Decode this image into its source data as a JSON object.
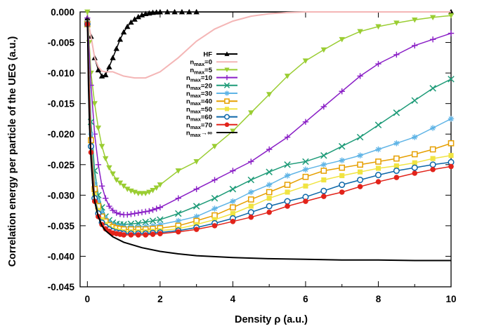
{
  "chart_data": {
    "type": "line",
    "title": "",
    "xlabel": "Density  ρ (a.u.)",
    "ylabel": "Correlation energy per particle of the UEG (a.u.)",
    "xlim": [
      -0.2,
      10
    ],
    "ylim": [
      -0.045,
      0.0
    ],
    "xticks": [
      "0",
      "2",
      "4",
      "6",
      "8",
      "10"
    ],
    "yticks": [
      "0.000",
      "-0.005",
      "-0.010",
      "-0.015",
      "-0.020",
      "-0.025",
      "-0.030",
      "-0.035",
      "-0.040",
      "-0.045"
    ],
    "grid": false,
    "legend_position": "upper-left-center",
    "series": [
      {
        "name": "HF",
        "legend_main": "HF",
        "legend_sub": "",
        "legend_tail": "",
        "color": "#000000",
        "marker": "triangle-up",
        "x": [
          0.0,
          0.1,
          0.2,
          0.3,
          0.4,
          0.5,
          0.6,
          0.7,
          0.8,
          0.9,
          1.0,
          1.1,
          1.2,
          1.3,
          1.4,
          1.5,
          1.6,
          1.7,
          1.8,
          1.9,
          2.0,
          2.2,
          2.4,
          2.6,
          2.8,
          3.0,
          10.0
        ],
        "y": [
          -0.001,
          -0.004,
          -0.0075,
          -0.0095,
          -0.0105,
          -0.0103,
          -0.009,
          -0.0075,
          -0.006,
          -0.0045,
          -0.0033,
          -0.0024,
          -0.0017,
          -0.0012,
          -0.0008,
          -0.0005,
          -0.0003,
          -0.0002,
          -0.0001,
          -5e-05,
          0.0,
          0.0,
          0.0,
          0.0,
          0.0,
          0.0,
          0.0
        ]
      },
      {
        "name": "n_max=0",
        "legend_main": "n",
        "legend_sub": "max",
        "legend_tail": "=0",
        "color": "#f4b6b6",
        "marker": "none",
        "x": [
          0.0,
          0.1,
          0.2,
          0.3,
          0.4,
          0.5,
          0.7,
          1.0,
          1.3,
          1.6,
          2.0,
          2.5,
          3.0,
          3.5,
          4.0,
          4.5,
          5.0,
          5.5,
          6.0,
          7.0,
          8.0,
          10.0
        ],
        "y": [
          -0.001,
          -0.004,
          -0.0075,
          -0.009,
          -0.0097,
          -0.0098,
          -0.0098,
          -0.0105,
          -0.0108,
          -0.0108,
          -0.0098,
          -0.0075,
          -0.0048,
          -0.0028,
          -0.0015,
          -0.0007,
          -0.0003,
          -0.0001,
          0.0,
          0.0,
          0.0,
          0.0
        ]
      },
      {
        "name": "n_max=5",
        "legend_main": "n",
        "legend_sub": "max",
        "legend_tail": "=5",
        "color": "#9acd32",
        "marker": "triangle-down",
        "x": [
          0.0,
          0.05,
          0.1,
          0.2,
          0.3,
          0.4,
          0.5,
          0.6,
          0.7,
          0.8,
          0.9,
          1.0,
          1.1,
          1.2,
          1.3,
          1.4,
          1.5,
          1.6,
          1.7,
          1.8,
          1.9,
          2.0,
          2.5,
          3.0,
          3.5,
          4.0,
          4.5,
          5.0,
          5.5,
          6.0,
          6.5,
          7.0,
          7.5,
          8.0,
          8.5,
          9.0,
          9.5,
          10.0
        ],
        "y": [
          0.0,
          -0.005,
          -0.01,
          -0.015,
          -0.019,
          -0.022,
          -0.024,
          -0.0255,
          -0.0265,
          -0.0275,
          -0.028,
          -0.0285,
          -0.029,
          -0.0293,
          -0.0295,
          -0.0297,
          -0.0297,
          -0.0297,
          -0.0295,
          -0.0292,
          -0.0288,
          -0.0283,
          -0.026,
          -0.0245,
          -0.022,
          -0.0195,
          -0.0165,
          -0.0135,
          -0.0105,
          -0.008,
          -0.0062,
          -0.0045,
          -0.0032,
          -0.0024,
          -0.0018,
          -0.0013,
          -0.0009,
          -0.0006
        ]
      },
      {
        "name": "n_max=10",
        "legend_main": "n",
        "legend_sub": "max",
        "legend_tail": "=10",
        "color": "#8a1fc6",
        "marker": "plus",
        "x": [
          0.0,
          0.1,
          0.2,
          0.3,
          0.4,
          0.5,
          0.6,
          0.7,
          0.8,
          0.9,
          1.0,
          1.1,
          1.2,
          1.3,
          1.4,
          1.5,
          1.6,
          1.7,
          1.8,
          1.9,
          2.0,
          2.5,
          3.0,
          3.5,
          4.0,
          4.5,
          5.0,
          5.5,
          6.0,
          6.5,
          7.0,
          7.5,
          8.0,
          8.5,
          9.0,
          9.5,
          10.0
        ],
        "y": [
          -0.001,
          -0.012,
          -0.02,
          -0.025,
          -0.0285,
          -0.0305,
          -0.0318,
          -0.0325,
          -0.0329,
          -0.0331,
          -0.0332,
          -0.0332,
          -0.0331,
          -0.033,
          -0.0329,
          -0.0328,
          -0.0327,
          -0.0326,
          -0.0324,
          -0.0322,
          -0.032,
          -0.0305,
          -0.029,
          -0.0275,
          -0.026,
          -0.0245,
          -0.0225,
          -0.0205,
          -0.018,
          -0.0155,
          -0.013,
          -0.0105,
          -0.0085,
          -0.007,
          -0.0055,
          -0.0045,
          -0.0035
        ]
      },
      {
        "name": "n_max=20",
        "legend_main": "n",
        "legend_sub": "max",
        "legend_tail": "=20",
        "color": "#1e9b78",
        "marker": "x",
        "x": [
          0.0,
          0.1,
          0.2,
          0.3,
          0.4,
          0.5,
          0.6,
          0.7,
          0.8,
          0.9,
          1.0,
          1.2,
          1.4,
          1.6,
          1.8,
          2.0,
          2.5,
          3.0,
          3.5,
          4.0,
          4.5,
          5.0,
          5.5,
          6.0,
          6.5,
          7.0,
          7.5,
          8.0,
          8.5,
          9.0,
          9.5,
          10.0
        ],
        "y": [
          -0.002,
          -0.018,
          -0.026,
          -0.03,
          -0.032,
          -0.0335,
          -0.0341,
          -0.0345,
          -0.0347,
          -0.0348,
          -0.0348,
          -0.0347,
          -0.0346,
          -0.0344,
          -0.0342,
          -0.034,
          -0.033,
          -0.0318,
          -0.0305,
          -0.029,
          -0.0275,
          -0.0262,
          -0.025,
          -0.0245,
          -0.0235,
          -0.022,
          -0.0205,
          -0.0185,
          -0.0165,
          -0.0145,
          -0.0125,
          -0.011
        ]
      },
      {
        "name": "n_max=30",
        "legend_main": "n",
        "legend_sub": "max",
        "legend_tail": "=30",
        "color": "#5fb4e6",
        "marker": "star",
        "x": [
          0.0,
          0.1,
          0.2,
          0.3,
          0.4,
          0.5,
          0.6,
          0.7,
          0.8,
          0.9,
          1.0,
          1.2,
          1.4,
          1.6,
          1.8,
          2.0,
          2.5,
          3.0,
          3.5,
          4.0,
          4.5,
          5.0,
          5.5,
          6.0,
          6.5,
          7.0,
          7.5,
          8.0,
          8.5,
          9.0,
          9.5,
          10.0
        ],
        "y": [
          -0.002,
          -0.02,
          -0.028,
          -0.031,
          -0.0328,
          -0.0338,
          -0.0344,
          -0.0348,
          -0.035,
          -0.0351,
          -0.0352,
          -0.0352,
          -0.0352,
          -0.0351,
          -0.035,
          -0.0348,
          -0.0342,
          -0.0335,
          -0.0322,
          -0.031,
          -0.0295,
          -0.0283,
          -0.0268,
          -0.0258,
          -0.025,
          -0.0243,
          -0.0235,
          -0.0225,
          -0.0215,
          -0.0205,
          -0.019,
          -0.0175
        ]
      },
      {
        "name": "n_max=40",
        "legend_main": "n",
        "legend_sub": "max",
        "legend_tail": "=40",
        "color": "#e69f00",
        "marker": "square-open",
        "x": [
          0.0,
          0.1,
          0.2,
          0.3,
          0.4,
          0.5,
          0.6,
          0.7,
          0.8,
          0.9,
          1.0,
          1.2,
          1.4,
          1.6,
          1.8,
          2.0,
          2.5,
          3.0,
          3.5,
          4.0,
          4.5,
          5.0,
          5.5,
          6.0,
          6.5,
          7.0,
          7.5,
          8.0,
          8.5,
          9.0,
          9.5,
          10.0
        ],
        "y": [
          -0.002,
          -0.021,
          -0.029,
          -0.0318,
          -0.0335,
          -0.0343,
          -0.0349,
          -0.0352,
          -0.0354,
          -0.0355,
          -0.0356,
          -0.0356,
          -0.0356,
          -0.0356,
          -0.0355,
          -0.0354,
          -0.035,
          -0.0342,
          -0.0333,
          -0.032,
          -0.0307,
          -0.0295,
          -0.0283,
          -0.027,
          -0.026,
          -0.0255,
          -0.025,
          -0.0245,
          -0.024,
          -0.0233,
          -0.0225,
          -0.0215
        ]
      },
      {
        "name": "n_max=50",
        "legend_main": "n",
        "legend_sub": "max",
        "legend_tail": "=50",
        "color": "#f0e442",
        "marker": "square",
        "x": [
          0.0,
          0.1,
          0.2,
          0.3,
          0.4,
          0.5,
          0.6,
          0.7,
          0.8,
          0.9,
          1.0,
          1.2,
          1.4,
          1.6,
          1.8,
          2.0,
          2.5,
          3.0,
          3.5,
          4.0,
          4.5,
          5.0,
          5.5,
          6.0,
          6.5,
          7.0,
          7.5,
          8.0,
          8.5,
          9.0,
          9.5,
          10.0
        ],
        "y": [
          -0.002,
          -0.022,
          -0.03,
          -0.0325,
          -0.034,
          -0.0348,
          -0.0353,
          -0.0356,
          -0.0358,
          -0.0359,
          -0.036,
          -0.036,
          -0.036,
          -0.036,
          -0.0359,
          -0.0358,
          -0.0355,
          -0.0348,
          -0.034,
          -0.033,
          -0.0318,
          -0.0305,
          -0.0295,
          -0.0285,
          -0.0275,
          -0.0268,
          -0.0262,
          -0.0256,
          -0.0252,
          -0.0247,
          -0.024,
          -0.0235
        ]
      },
      {
        "name": "n_max=60",
        "legend_main": "n",
        "legend_sub": "max",
        "legend_tail": "=60",
        "color": "#0b66a8",
        "marker": "circle-open",
        "x": [
          0.0,
          0.1,
          0.2,
          0.3,
          0.4,
          0.5,
          0.6,
          0.7,
          0.8,
          0.9,
          1.0,
          1.2,
          1.4,
          1.6,
          1.8,
          2.0,
          2.5,
          3.0,
          3.5,
          4.0,
          4.5,
          5.0,
          5.5,
          6.0,
          6.5,
          7.0,
          7.5,
          8.0,
          8.5,
          9.0,
          9.5,
          10.0
        ],
        "y": [
          -0.002,
          -0.022,
          -0.0305,
          -0.033,
          -0.0345,
          -0.0352,
          -0.0356,
          -0.0359,
          -0.0361,
          -0.0362,
          -0.0363,
          -0.0363,
          -0.0363,
          -0.0363,
          -0.0362,
          -0.0361,
          -0.0358,
          -0.0353,
          -0.0346,
          -0.0338,
          -0.0328,
          -0.0318,
          -0.031,
          -0.0303,
          -0.0293,
          -0.0283,
          -0.0275,
          -0.0267,
          -0.026,
          -0.0255,
          -0.025,
          -0.0246
        ]
      },
      {
        "name": "n_max=70",
        "legend_main": "n",
        "legend_sub": "max",
        "legend_tail": "=70",
        "color": "#e2231a",
        "marker": "circle",
        "x": [
          0.0,
          0.1,
          0.2,
          0.3,
          0.4,
          0.5,
          0.6,
          0.7,
          0.8,
          0.9,
          1.0,
          1.2,
          1.4,
          1.6,
          1.8,
          2.0,
          2.5,
          3.0,
          3.5,
          4.0,
          4.5,
          5.0,
          5.5,
          6.0,
          6.5,
          7.0,
          7.5,
          8.0,
          8.5,
          9.0,
          9.5,
          10.0
        ],
        "y": [
          -0.002,
          -0.023,
          -0.031,
          -0.0335,
          -0.0348,
          -0.0355,
          -0.0359,
          -0.0362,
          -0.0363,
          -0.0364,
          -0.0365,
          -0.0365,
          -0.0365,
          -0.0365,
          -0.0364,
          -0.0363,
          -0.036,
          -0.0356,
          -0.035,
          -0.0343,
          -0.0336,
          -0.0328,
          -0.0318,
          -0.031,
          -0.0302,
          -0.0295,
          -0.0286,
          -0.0278,
          -0.0271,
          -0.0264,
          -0.0258,
          -0.0253
        ]
      },
      {
        "name": "n_max→∞",
        "legend_main": "n",
        "legend_sub": "max",
        "legend_tail": "→∞",
        "color": "#000000",
        "marker": "none",
        "x": [
          0.0,
          0.03,
          0.06,
          0.1,
          0.15,
          0.2,
          0.3,
          0.4,
          0.5,
          0.7,
          1.0,
          1.5,
          2.0,
          2.5,
          3.0,
          4.0,
          5.0,
          6.0,
          7.0,
          8.0,
          9.0,
          10.0
        ],
        "y": [
          -0.001,
          -0.012,
          -0.019,
          -0.024,
          -0.0285,
          -0.031,
          -0.0335,
          -0.035,
          -0.0358,
          -0.0368,
          -0.0377,
          -0.0386,
          -0.0392,
          -0.0396,
          -0.0399,
          -0.0402,
          -0.0404,
          -0.0405,
          -0.0406,
          -0.0406,
          -0.0407,
          -0.0407
        ]
      }
    ]
  }
}
